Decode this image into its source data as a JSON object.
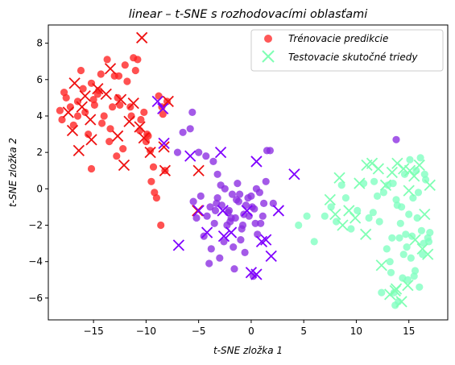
{
  "chart_data": {
    "type": "scatter",
    "title": "linear – t-SNE s rozhodovacími oblasťami",
    "xlabel": "t-SNE zložka 1",
    "ylabel": "t-SNE zložka 2",
    "xlim": [
      -19.3,
      18.7
    ],
    "ylim": [
      -7.2,
      9.0
    ],
    "xticks": [
      -15,
      -10,
      -5,
      0,
      5,
      10,
      15
    ],
    "yticks": [
      -6,
      -4,
      -2,
      0,
      2,
      4,
      6,
      8
    ],
    "grid": false,
    "legend_position": "top-right",
    "class_colors": [
      "#ff2020",
      "#8a2be2",
      "#7fffc0"
    ],
    "cross_colors": [
      "#ee1111",
      "#7f00ff",
      "#80ffb4"
    ],
    "series": [
      {
        "name": "Trénovacie predikcie",
        "marker": "circle",
        "classes": [
          {
            "class": 0,
            "x": [
              -18.2,
              -18.0,
              -17.6,
              -17.2,
              -16.9,
              -16.5,
              -16.2,
              -16.0,
              -15.8,
              -15.5,
              -15.2,
              -14.9,
              -14.6,
              -14.3,
              -14.0,
              -13.7,
              -13.4,
              -13.2,
              -13.0,
              -12.7,
              -12.5,
              -12.2,
              -12.0,
              -11.8,
              -11.5,
              -11.2,
              -11.0,
              -10.8,
              -10.5,
              -10.2,
              -10.0,
              -9.8,
              -9.5,
              -9.2,
              -9.0,
              -8.8,
              -8.5,
              -8.2,
              -8.0,
              -17.8,
              -16.5,
              -15.0,
              -14.2,
              -13.5,
              -12.8,
              -11.4,
              -10.6,
              -9.6,
              -9.3,
              -8.6,
              -8.4,
              -15.2,
              -14.5,
              -12.6,
              -9.9
            ],
            "y": [
              4.3,
              3.8,
              5.0,
              4.5,
              3.5,
              4.8,
              6.5,
              5.5,
              4.2,
              3.0,
              5.8,
              4.6,
              5.2,
              6.3,
              4.0,
              7.1,
              3.3,
              4.5,
              6.2,
              5.0,
              4.6,
              2.2,
              6.8,
              5.9,
              4.5,
              7.2,
              6.5,
              7.1,
              3.8,
              4.2,
              2.6,
              2.9,
              0.4,
              -0.2,
              -0.5,
              5.1,
              4.5,
              1.0,
              4.8,
              5.3,
              4.0,
              4.9,
              3.6,
              2.6,
              1.8,
              4.0,
              3.2,
              2.1,
              1.2,
              -2.0,
              4.1,
              1.1,
              5.4,
              6.2,
              3.0
            ]
          },
          {
            "class": 1,
            "x": [
              -5.5,
              -4.8,
              -4.2,
              -3.9,
              -3.5,
              -3.2,
              -2.8,
              -2.5,
              -2.2,
              -2.0,
              -1.8,
              -1.5,
              -1.2,
              -1.0,
              -0.8,
              -0.5,
              -0.2,
              0.0,
              0.3,
              0.6,
              0.9,
              1.2,
              1.5,
              1.8,
              2.1,
              -5.2,
              -4.5,
              -3.8,
              -3.0,
              -2.6,
              -2.1,
              -1.7,
              -1.3,
              -0.9,
              -0.6,
              -0.3,
              0.1,
              0.4,
              0.8,
              1.1,
              -6.5,
              -5.8,
              -5.0,
              -4.3,
              -3.6,
              -3.2,
              -1.9,
              -1.1,
              0.5,
              1.4,
              -0.7,
              -2.3,
              -4.0,
              0.2,
              -1.6,
              -2.9,
              -3.3,
              13.8,
              -7.0,
              -5.6,
              -3.4,
              -1.4
            ],
            "y": [
              -0.7,
              -0.4,
              -1.5,
              -1.0,
              -1.9,
              -0.5,
              -0.9,
              0.0,
              -1.3,
              -1.8,
              -0.3,
              -1.6,
              -0.7,
              -2.8,
              -2.0,
              -0.9,
              -1.5,
              -0.4,
              -1.1,
              -2.5,
              -1.9,
              -0.8,
              2.1,
              2.1,
              -0.8,
              -1.6,
              -2.6,
              -3.3,
              -3.8,
              -2.9,
              -1.2,
              -3.2,
              0.3,
              -2.2,
              -3.5,
              -0.5,
              -1.0,
              -1.9,
              -0.2,
              -1.5,
              3.1,
              3.3,
              2.0,
              1.8,
              1.5,
              0.8,
              -1.6,
              -0.3,
              0.0,
              0.4,
              -1.4,
              -2.0,
              -4.1,
              -4.8,
              -4.4,
              0.2,
              -0.8,
              2.7,
              2.0,
              4.2,
              -1.2,
              -0.6
            ]
          },
          {
            "class": 2,
            "x": [
              4.5,
              5.3,
              6.0,
              7.0,
              7.6,
              8.1,
              8.6,
              9.0,
              9.5,
              10.1,
              10.7,
              11.2,
              11.7,
              12.2,
              12.6,
              13.0,
              13.4,
              13.8,
              14.2,
              14.6,
              15.0,
              15.4,
              15.8,
              16.2,
              16.6,
              17.0,
              13.2,
              13.6,
              14.0,
              14.4,
              14.8,
              15.2,
              15.6,
              16.0,
              16.4,
              16.8,
              12.4,
              12.9,
              13.3,
              13.7,
              14.1,
              14.5,
              14.9,
              15.3,
              15.7,
              16.1,
              16.5,
              16.9,
              13.5,
              14.3,
              15.1,
              15.9,
              12.0,
              11.6,
              13.9,
              14.7,
              15.5,
              16.3
            ],
            "y": [
              -2.0,
              -1.5,
              -2.9,
              -1.5,
              -1.0,
              -1.8,
              0.2,
              -0.5,
              -2.2,
              -1.2,
              0.3,
              -1.6,
              0.4,
              -1.8,
              -0.2,
              0.2,
              -2.7,
              -0.6,
              -1.9,
              0.8,
              -1.4,
              -0.5,
              -1.6,
              -2.3,
              0.5,
              -2.4,
              -4.0,
              -5.7,
              -6.2,
              -4.9,
              -3.2,
              -3.8,
              -4.5,
              -5.4,
              -3.0,
              -2.7,
              -5.7,
              -3.3,
              -4.6,
              -6.4,
              -2.7,
              -3.6,
              -5.0,
              -2.6,
              1.0,
              1.7,
              0.8,
              -2.9,
              0.3,
              -1.0,
              1.6,
              -0.2,
              -0.4,
              -1.3,
              -0.9,
              -2.5,
              -4.8,
              -3.6
            ]
          }
        ]
      },
      {
        "name": "Testovacie skutočné triedy",
        "marker": "x",
        "classes": [
          {
            "class": 0,
            "x": [
              -10.4,
              -13.8,
              -13.4,
              -17.4,
              -16.8,
              -16.1,
              -15.8,
              -15.3,
              -14.6,
              -12.4,
              -11.6,
              -11.2,
              -10.6,
              -9.6,
              -8.2,
              -7.9,
              -12.7,
              -12.1,
              -15.2,
              -16.4,
              -17.0,
              -10.2,
              -5.0,
              -5.1,
              -8.3
            ],
            "y": [
              8.3,
              5.2,
              6.6,
              4.2,
              5.8,
              4.5,
              5.1,
              3.8,
              5.5,
              4.9,
              3.7,
              4.7,
              3.4,
              2.0,
              1.0,
              4.8,
              2.9,
              1.3,
              2.7,
              2.1,
              3.2,
              2.8,
              1.0,
              -1.2,
              2.3
            ]
          },
          {
            "class": 1,
            "x": [
              -8.9,
              -8.4,
              -8.3,
              -6.9,
              -5.0,
              -2.9,
              -2.7,
              -2.6,
              -1.9,
              -0.4,
              0.0,
              0.5,
              0.5,
              1.0,
              1.4,
              1.9,
              2.6,
              4.1,
              -4.2,
              -5.8
            ],
            "y": [
              4.8,
              4.4,
              2.5,
              -3.1,
              -1.2,
              2.0,
              -1.2,
              -2.6,
              -2.4,
              -1.2,
              -4.6,
              -4.7,
              1.5,
              -2.9,
              -2.8,
              -3.7,
              -1.2,
              0.8,
              -2.4,
              1.8
            ]
          },
          {
            "class": 2,
            "x": [
              8.4,
              7.5,
              8.0,
              8.7,
              9.3,
              9.9,
              10.3,
              10.9,
              11.5,
              12.1,
              12.8,
              13.4,
              13.9,
              14.5,
              15.0,
              15.5,
              16.0,
              16.5,
              17.0,
              13.7,
              14.3,
              14.9,
              15.6,
              16.3,
              16.8,
              13.2,
              13.8,
              15.1,
              11.0,
              12.4
            ],
            "y": [
              0.6,
              -0.6,
              -1.4,
              -2.0,
              -1.2,
              -1.6,
              0.3,
              -2.5,
              1.4,
              1.1,
              0.2,
              0.9,
              1.4,
              1.1,
              -0.1,
              0.7,
              1.3,
              -1.4,
              0.2,
              -5.6,
              -6.2,
              -5.3,
              -2.8,
              -3.3,
              -3.6,
              -5.8,
              -5.5,
              1.0,
              1.3,
              -4.2
            ]
          }
        ]
      }
    ]
  }
}
